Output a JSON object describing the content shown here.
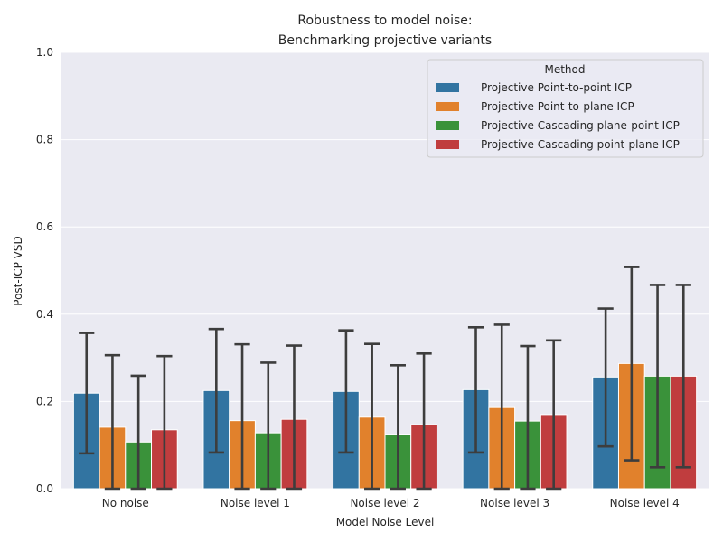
{
  "chart_data": {
    "type": "bar",
    "title_lines": [
      "Robustness to model noise:",
      "Benchmarking projective variants"
    ],
    "xlabel": "Model Noise Level",
    "ylabel": "Post-ICP VSD",
    "ylim": [
      0,
      1.0
    ],
    "yticks": [
      "0.0",
      "0.2",
      "0.4",
      "0.6",
      "0.8",
      "1.0"
    ],
    "categories": [
      "No noise",
      "Noise level 1",
      "Noise level 2",
      "Noise level 3",
      "Noise level 4"
    ],
    "legend": {
      "title": "Method",
      "placement": "top-right"
    },
    "series": [
      {
        "name": "Projective Point-to-point ICP",
        "color": "#3274a1",
        "values": [
          0.219,
          0.225,
          0.223,
          0.227,
          0.256
        ],
        "err_low": [
          0.081,
          0.083,
          0.083,
          0.083,
          0.097
        ],
        "err_high": [
          0.357,
          0.366,
          0.363,
          0.37,
          0.413
        ]
      },
      {
        "name": "Projective Point-to-plane ICP",
        "color": "#e1812c",
        "values": [
          0.141,
          0.156,
          0.164,
          0.186,
          0.287
        ],
        "err_low": [
          0.0,
          0.0,
          0.0,
          0.0,
          0.065
        ],
        "err_high": [
          0.306,
          0.331,
          0.332,
          0.376,
          0.508
        ]
      },
      {
        "name": "Projective Cascading plane-point ICP",
        "color": "#3a923a",
        "values": [
          0.107,
          0.128,
          0.125,
          0.155,
          0.258
        ],
        "err_low": [
          0.0,
          0.0,
          0.0,
          0.0,
          0.049
        ],
        "err_high": [
          0.259,
          0.289,
          0.283,
          0.327,
          0.467
        ]
      },
      {
        "name": "Projective Cascading point-plane ICP",
        "color": "#c03d3e",
        "values": [
          0.135,
          0.159,
          0.147,
          0.17,
          0.258
        ],
        "err_low": [
          0.0,
          0.0,
          0.0,
          0.0,
          0.049
        ],
        "err_high": [
          0.304,
          0.328,
          0.31,
          0.34,
          0.467
        ]
      }
    ]
  }
}
